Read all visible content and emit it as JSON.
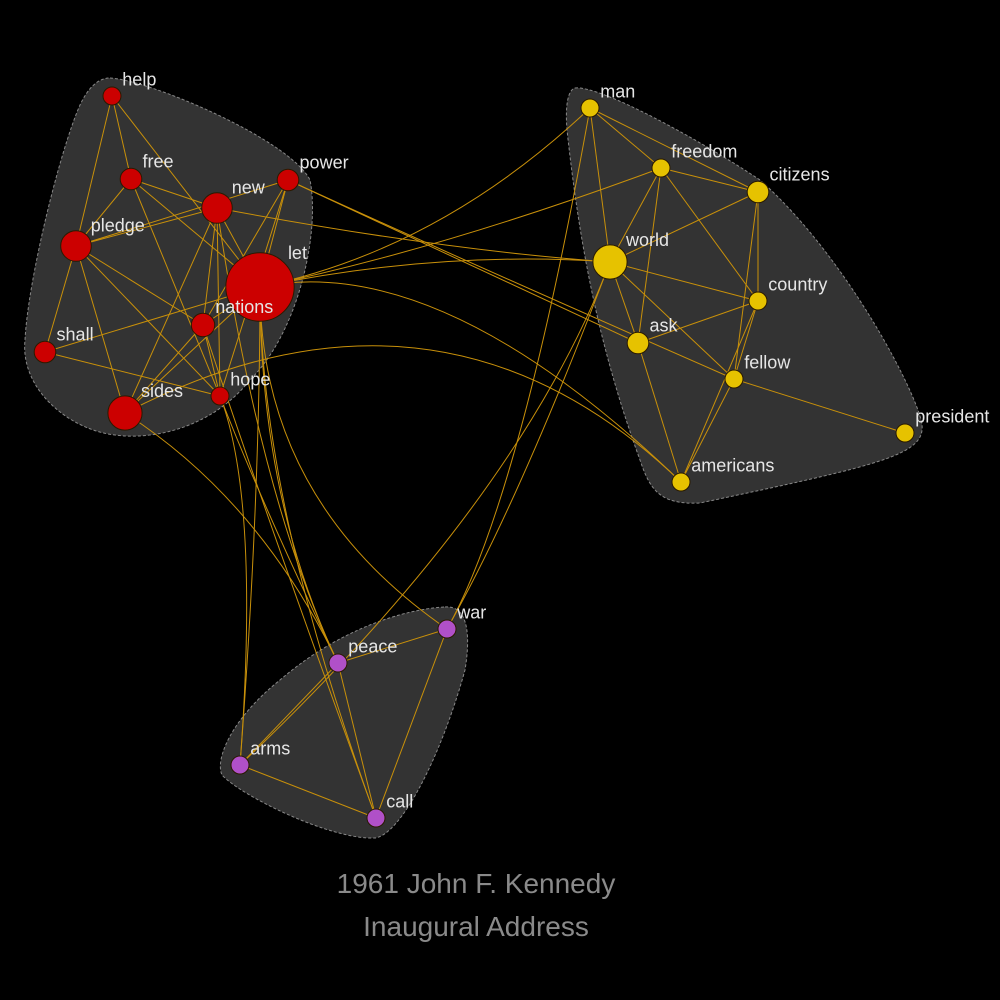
{
  "title": {
    "line1": "1961 John F. Kennedy",
    "line2": "Inaugural Address"
  },
  "colors": {
    "background": "#000000",
    "hull": "#333333",
    "edge": "#c8900a",
    "red": "#cc0000",
    "yellow": "#e6c200",
    "purple": "#b050c8",
    "label": "#e6e6e6",
    "title": "#8a8a8a"
  },
  "groups": [
    {
      "id": "red",
      "color": "#cc0000"
    },
    {
      "id": "yellow",
      "color": "#e6c200"
    },
    {
      "id": "purple",
      "color": "#b050c8"
    }
  ],
  "nodes": [
    {
      "id": "help",
      "group": "red",
      "weight": 1
    },
    {
      "id": "free",
      "group": "red",
      "weight": 1.2
    },
    {
      "id": "new",
      "group": "red",
      "weight": 1.7
    },
    {
      "id": "power",
      "group": "red",
      "weight": 1.2
    },
    {
      "id": "pledge",
      "group": "red",
      "weight": 1.7
    },
    {
      "id": "let",
      "group": "red",
      "weight": 3.8
    },
    {
      "id": "nations",
      "group": "red",
      "weight": 1.3
    },
    {
      "id": "shall",
      "group": "red",
      "weight": 1.2
    },
    {
      "id": "hope",
      "group": "red",
      "weight": 1
    },
    {
      "id": "sides",
      "group": "red",
      "weight": 1.9
    },
    {
      "id": "man",
      "group": "yellow",
      "weight": 1
    },
    {
      "id": "freedom",
      "group": "yellow",
      "weight": 1
    },
    {
      "id": "citizens",
      "group": "yellow",
      "weight": 1.2
    },
    {
      "id": "world",
      "group": "yellow",
      "weight": 1.9
    },
    {
      "id": "country",
      "group": "yellow",
      "weight": 1
    },
    {
      "id": "ask",
      "group": "yellow",
      "weight": 1.2
    },
    {
      "id": "fellow",
      "group": "yellow",
      "weight": 1
    },
    {
      "id": "americans",
      "group": "yellow",
      "weight": 1
    },
    {
      "id": "president",
      "group": "yellow",
      "weight": 1
    },
    {
      "id": "war",
      "group": "purple",
      "weight": 1
    },
    {
      "id": "peace",
      "group": "purple",
      "weight": 1
    },
    {
      "id": "arms",
      "group": "purple",
      "weight": 1
    },
    {
      "id": "call",
      "group": "purple",
      "weight": 1
    }
  ],
  "edges": [
    [
      "help",
      "free"
    ],
    [
      "help",
      "pledge"
    ],
    [
      "help",
      "let"
    ],
    [
      "free",
      "pledge"
    ],
    [
      "free",
      "new"
    ],
    [
      "free",
      "let"
    ],
    [
      "free",
      "hope"
    ],
    [
      "pledge",
      "new"
    ],
    [
      "pledge",
      "power"
    ],
    [
      "pledge",
      "nations"
    ],
    [
      "pledge",
      "shall"
    ],
    [
      "pledge",
      "sides"
    ],
    [
      "pledge",
      "hope"
    ],
    [
      "new",
      "let"
    ],
    [
      "new",
      "nations"
    ],
    [
      "new",
      "sides"
    ],
    [
      "new",
      "hope"
    ],
    [
      "power",
      "let"
    ],
    [
      "power",
      "nations"
    ],
    [
      "power",
      "hope"
    ],
    [
      "let",
      "nations"
    ],
    [
      "let",
      "sides"
    ],
    [
      "shall",
      "let"
    ],
    [
      "shall",
      "hope"
    ],
    [
      "nations",
      "sides"
    ],
    [
      "nations",
      "hope"
    ],
    [
      "man",
      "freedom"
    ],
    [
      "man",
      "citizens"
    ],
    [
      "man",
      "world"
    ],
    [
      "freedom",
      "citizens"
    ],
    [
      "freedom",
      "world"
    ],
    [
      "freedom",
      "ask"
    ],
    [
      "freedom",
      "country"
    ],
    [
      "citizens",
      "world"
    ],
    [
      "citizens",
      "country"
    ],
    [
      "citizens",
      "fellow"
    ],
    [
      "world",
      "country"
    ],
    [
      "world",
      "ask"
    ],
    [
      "world",
      "fellow"
    ],
    [
      "ask",
      "country"
    ],
    [
      "ask",
      "americans"
    ],
    [
      "fellow",
      "country"
    ],
    [
      "fellow",
      "americans"
    ],
    [
      "fellow",
      "president"
    ],
    [
      "country",
      "americans"
    ],
    [
      "war",
      "peace"
    ],
    [
      "war",
      "call"
    ],
    [
      "peace",
      "arms"
    ],
    [
      "peace",
      "call"
    ],
    [
      "arms",
      "call"
    ],
    [
      "let",
      "world"
    ],
    [
      "let",
      "man"
    ],
    [
      "new",
      "world"
    ],
    [
      "power",
      "fellow"
    ],
    [
      "power",
      "ask"
    ],
    [
      "let",
      "americans"
    ],
    [
      "let",
      "freedom"
    ],
    [
      "sides",
      "peace"
    ],
    [
      "let",
      "arms"
    ],
    [
      "let",
      "peace"
    ],
    [
      "let",
      "war"
    ],
    [
      "nations",
      "call"
    ],
    [
      "hope",
      "arms"
    ],
    [
      "hope",
      "peace"
    ],
    [
      "new",
      "peace"
    ],
    [
      "sides",
      "americans"
    ],
    [
      "world",
      "war"
    ],
    [
      "man",
      "war"
    ],
    [
      "world",
      "arms"
    ],
    [
      "let",
      "call"
    ]
  ]
}
